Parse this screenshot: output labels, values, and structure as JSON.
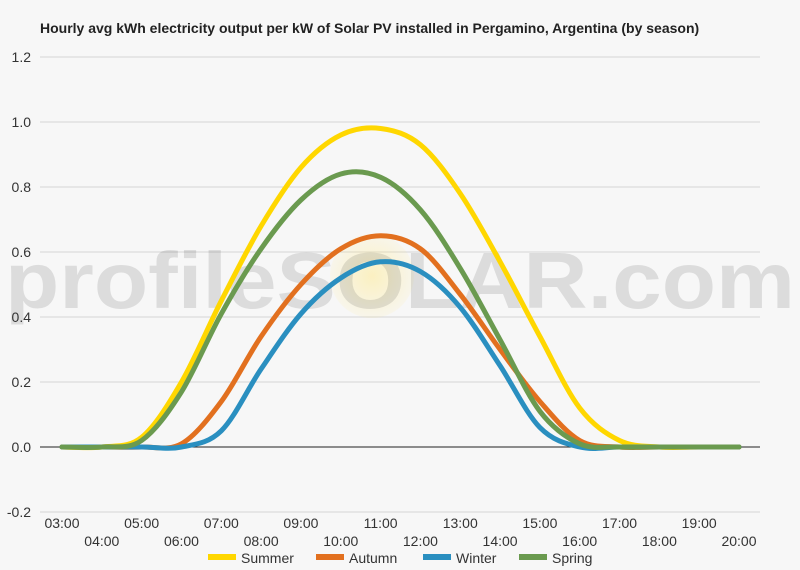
{
  "chart_data": {
    "type": "line",
    "title": "Hourly avg kWh electricity output per kW of Solar PV installed in Pergamino, Argentina (by season)",
    "watermark": "profileSOLAR.com",
    "x": [
      "03:00",
      "04:00",
      "05:00",
      "06:00",
      "07:00",
      "08:00",
      "09:00",
      "10:00",
      "11:00",
      "12:00",
      "13:00",
      "14:00",
      "15:00",
      "16:00",
      "17:00",
      "18:00",
      "19:00",
      "20:00"
    ],
    "ylim": [
      -0.2,
      1.2
    ],
    "yticks": [
      "1.2",
      "1.0",
      "0.8",
      "0.6",
      "0.4",
      "0.2",
      "0.0",
      "-0.2"
    ],
    "legend_position": "bottom",
    "series": [
      {
        "name": "Summer",
        "color": "#ffd700",
        "values": [
          0.0,
          0.0,
          0.03,
          0.2,
          0.45,
          0.68,
          0.86,
          0.96,
          0.98,
          0.93,
          0.78,
          0.57,
          0.34,
          0.12,
          0.02,
          0.0,
          0.0,
          0.0
        ]
      },
      {
        "name": "Autumn",
        "color": "#e2701f",
        "values": [
          0.0,
          0.0,
          0.0,
          0.01,
          0.14,
          0.34,
          0.5,
          0.61,
          0.65,
          0.61,
          0.47,
          0.3,
          0.14,
          0.02,
          0.0,
          0.0,
          0.0,
          0.0
        ]
      },
      {
        "name": "Winter",
        "color": "#2a8fc0",
        "values": [
          0.0,
          0.0,
          0.0,
          0.0,
          0.05,
          0.24,
          0.41,
          0.52,
          0.57,
          0.54,
          0.43,
          0.25,
          0.06,
          0.0,
          0.0,
          0.0,
          0.0,
          0.0
        ]
      },
      {
        "name": "Spring",
        "color": "#6a9a4f",
        "values": [
          0.0,
          0.0,
          0.02,
          0.17,
          0.41,
          0.61,
          0.76,
          0.84,
          0.83,
          0.73,
          0.55,
          0.33,
          0.11,
          0.01,
          0.0,
          0.0,
          0.0,
          0.0
        ]
      }
    ]
  }
}
